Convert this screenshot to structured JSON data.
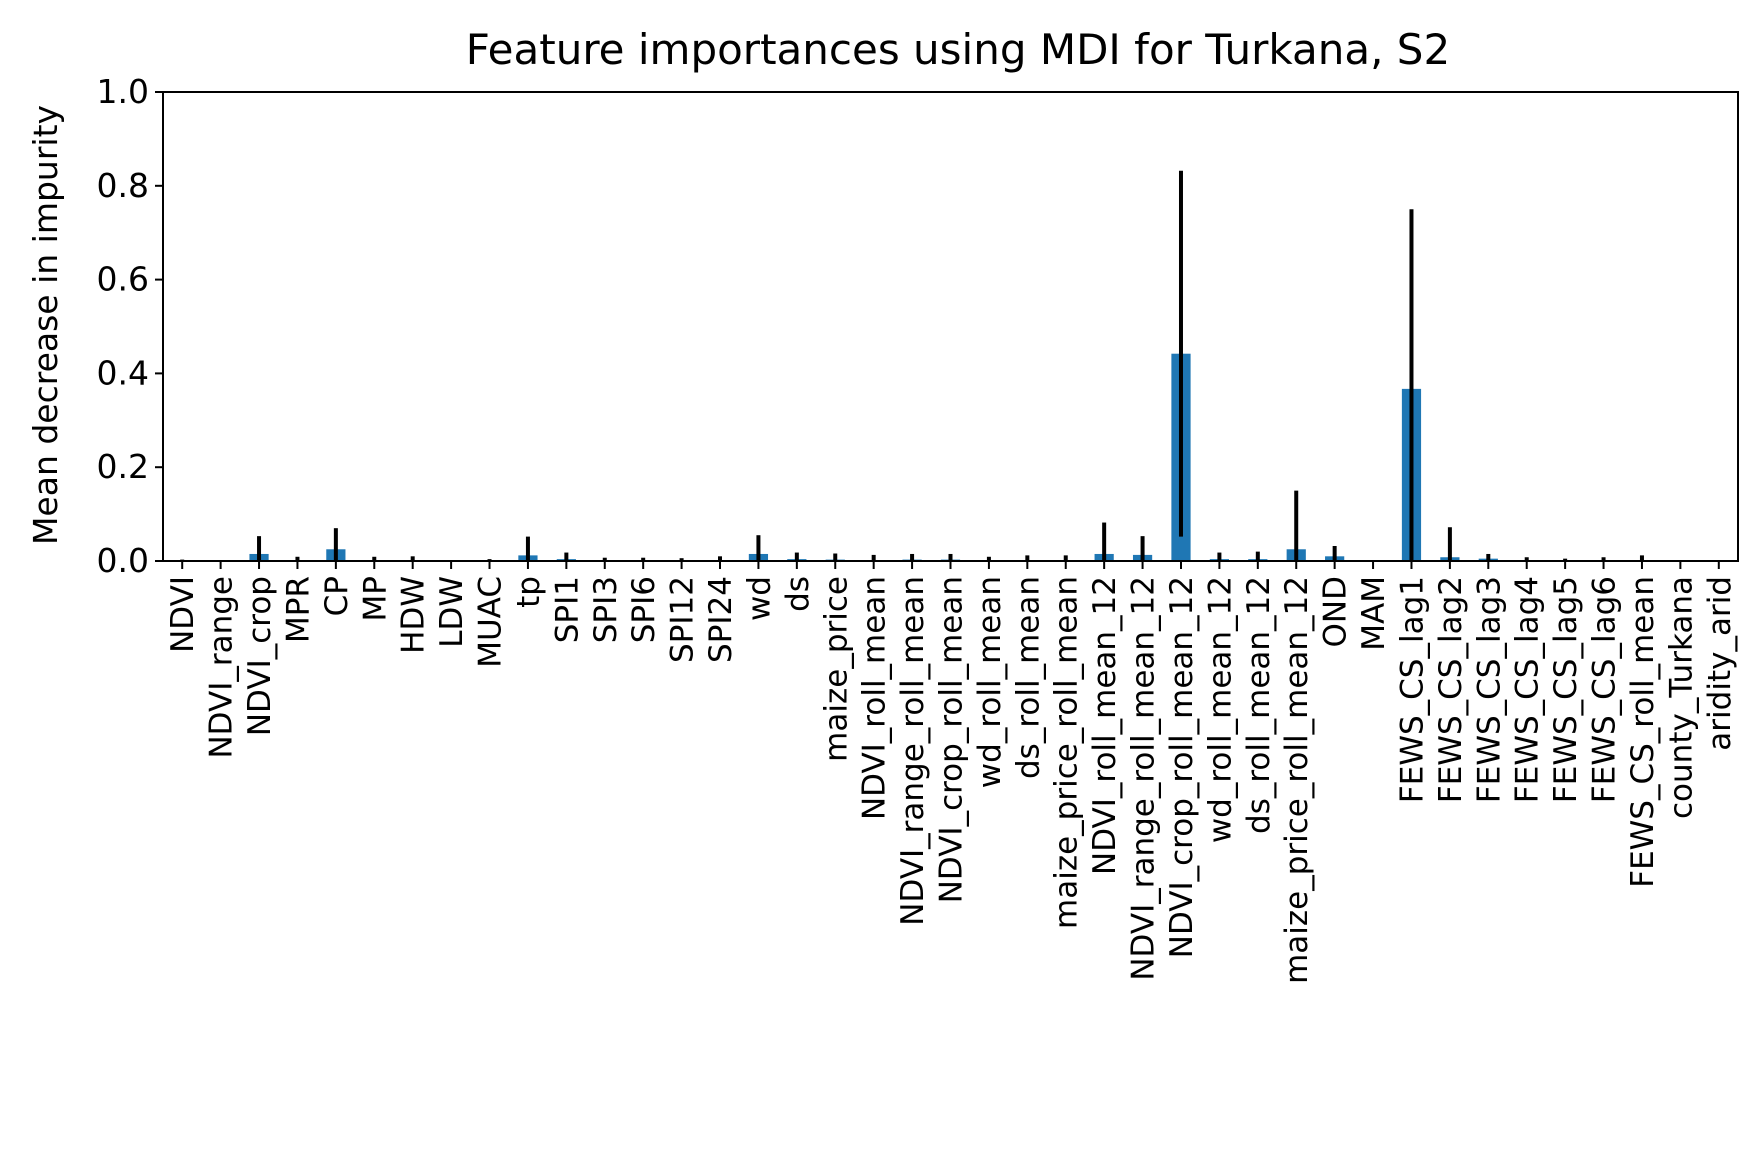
{
  "chart_data": {
    "type": "bar",
    "title": "Feature importances using MDI for Turkana, S2",
    "xlabel": "",
    "ylabel": "Mean decrease in impurity",
    "ylim": [
      0,
      1.0
    ],
    "yticks": [
      0.0,
      0.2,
      0.4,
      0.6,
      0.8,
      1.0
    ],
    "ytick_labels": [
      "0.0",
      "0.2",
      "0.4",
      "0.6",
      "0.8",
      "1.0"
    ],
    "grid": false,
    "legend": "none",
    "bar_color": "#1f77b4",
    "error_color": "#000000",
    "categories": [
      "NDVI",
      "NDVI_range",
      "NDVI_crop",
      "MPR",
      "CP",
      "MP",
      "HDW",
      "LDW",
      "MUAC",
      "tp",
      "SPI1",
      "SPI3",
      "SPI6",
      "SPI12",
      "SPI24",
      "wd",
      "ds",
      "maize_price",
      "NDVI_roll_mean",
      "NDVI_range_roll_mean",
      "NDVI_crop_roll_mean",
      "wd_roll_mean",
      "ds_roll_mean",
      "maize_price_roll_mean",
      "NDVI_roll_mean_12",
      "NDVI_range_roll_mean_12",
      "NDVI_crop_roll_mean_12",
      "wd_roll_mean_12",
      "ds_roll_mean_12",
      "maize_price_roll_mean_12",
      "OND",
      "MAM",
      "FEWS_CS_lag1",
      "FEWS_CS_lag2",
      "FEWS_CS_lag3",
      "FEWS_CS_lag4",
      "FEWS_CS_lag5",
      "FEWS_CS_lag6",
      "FEWS_CS_roll_mean",
      "county_Turkana",
      "aridity_arid"
    ],
    "values": [
      0.0,
      0.0,
      0.015,
      0.001,
      0.025,
      0.002,
      0.002,
      0.0,
      0.0,
      0.012,
      0.004,
      0.001,
      0.001,
      0.001,
      0.002,
      0.015,
      0.004,
      0.003,
      0.002,
      0.003,
      0.003,
      0.001,
      0.002,
      0.002,
      0.015,
      0.013,
      0.442,
      0.004,
      0.004,
      0.025,
      0.01,
      0.0,
      0.367,
      0.008,
      0.005,
      0.002,
      0.001,
      0.001,
      0.002,
      0.0,
      0.0
    ],
    "errors": [
      0.003,
      0.0,
      0.038,
      0.008,
      0.045,
      0.007,
      0.008,
      0.0,
      0.004,
      0.04,
      0.014,
      0.006,
      0.006,
      0.005,
      0.008,
      0.04,
      0.014,
      0.013,
      0.011,
      0.012,
      0.012,
      0.008,
      0.01,
      0.01,
      0.067,
      0.04,
      0.39,
      0.014,
      0.016,
      0.125,
      0.022,
      0.0,
      0.383,
      0.064,
      0.01,
      0.006,
      0.004,
      0.007,
      0.01,
      0.0,
      0.0
    ]
  }
}
